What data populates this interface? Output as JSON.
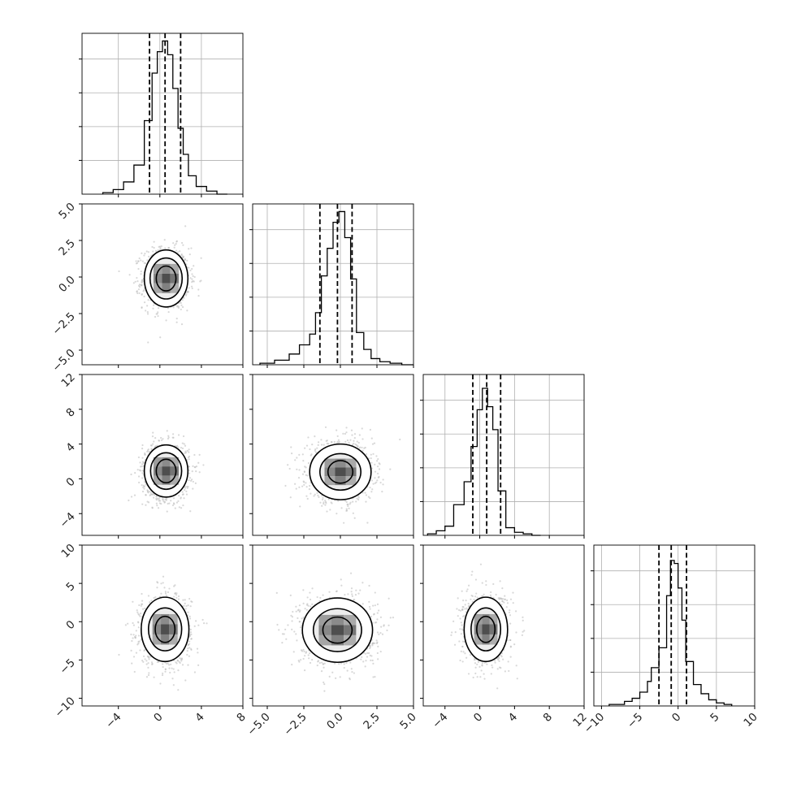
{
  "chart_data": {
    "type": "corner",
    "title": "",
    "parameters": [
      {
        "range": [
          -7.5,
          8.0
        ],
        "ticks": [
          -4,
          0,
          4,
          8
        ],
        "tick_labels": [
          "−4",
          "0",
          "4",
          "8"
        ],
        "quantiles": [
          -1.0,
          0.5,
          2.0
        ],
        "hist_ylim": [
          0,
          1.05
        ],
        "hist": {
          "edges": [
            -5.5,
            -4.5,
            -3.5,
            -2.5,
            -1.5,
            -0.75,
            -0.25,
            0.25,
            0.75,
            1.25,
            1.75,
            2.25,
            2.75,
            3.5,
            4.5,
            5.5,
            6.5
          ],
          "values": [
            0.01,
            0.03,
            0.08,
            0.19,
            0.48,
            0.79,
            0.93,
            1.0,
            0.91,
            0.69,
            0.43,
            0.26,
            0.12,
            0.05,
            0.02,
            0.0
          ]
        }
      },
      {
        "range": [
          -6.0,
          5.0
        ],
        "ticks": [
          -5.0,
          -2.5,
          0.0,
          2.5,
          5.0
        ],
        "tick_labels": [
          "−5.0",
          "−2.5",
          "0.0",
          "2.5",
          "5.0"
        ],
        "quantiles": [
          -1.4,
          -0.2,
          0.8
        ],
        "hist_ylim": [
          0,
          1.05
        ],
        "hist": {
          "edges": [
            -5.5,
            -4.5,
            -3.5,
            -2.8,
            -2.1,
            -1.7,
            -1.3,
            -0.9,
            -0.5,
            -0.1,
            0.3,
            0.7,
            1.1,
            1.6,
            2.1,
            2.7,
            3.4,
            4.2,
            5.0
          ],
          "values": [
            0.01,
            0.03,
            0.07,
            0.13,
            0.2,
            0.34,
            0.58,
            0.76,
            0.93,
            1.0,
            0.83,
            0.56,
            0.21,
            0.1,
            0.04,
            0.02,
            0.01,
            0.0
          ]
        }
      },
      {
        "range": [
          -6.5,
          12.0
        ],
        "ticks": [
          -4,
          0,
          4,
          8,
          12
        ],
        "tick_labels": [
          "−4",
          "0",
          "4",
          "8",
          "12"
        ],
        "y_tick_labels": [
          "−4",
          "0",
          "4",
          "8",
          "12"
        ],
        "quantiles": [
          -0.8,
          0.8,
          2.4
        ],
        "hist_ylim": [
          0,
          1.05
        ],
        "hist": {
          "edges": [
            -6.0,
            -5.0,
            -4.0,
            -3.0,
            -1.8,
            -1.0,
            -0.3,
            0.3,
            0.9,
            1.5,
            2.1,
            3.0,
            4.0,
            5.0,
            6.0,
            7.0
          ],
          "values": [
            0.01,
            0.03,
            0.06,
            0.2,
            0.35,
            0.58,
            0.82,
            0.96,
            0.84,
            0.69,
            0.29,
            0.05,
            0.02,
            0.01,
            0.0
          ]
        }
      },
      {
        "range": [
          -11.0,
          10.0
        ],
        "ticks": [
          -10,
          -5,
          0,
          5,
          10
        ],
        "tick_labels": [
          "−10",
          "−5",
          "0",
          "5",
          "10"
        ],
        "quantiles": [
          -2.5,
          -0.9,
          1.1
        ],
        "hist_ylim": [
          0,
          1.05
        ],
        "hist": {
          "edges": [
            -9.0,
            -7.0,
            -6.0,
            -5.0,
            -4.0,
            -3.5,
            -2.5,
            -1.5,
            -1.0,
            -0.5,
            0.0,
            0.5,
            1.0,
            2.0,
            3.0,
            4.0,
            5.0,
            6.0,
            7.0
          ],
          "values": [
            0.01,
            0.03,
            0.05,
            0.09,
            0.16,
            0.25,
            0.38,
            0.72,
            0.95,
            0.93,
            0.77,
            0.56,
            0.29,
            0.14,
            0.08,
            0.04,
            0.02,
            0.01
          ]
        }
      }
    ],
    "pairs": [
      {
        "x": 0,
        "y": 1,
        "center": [
          0.6,
          -0.1
        ],
        "contour_radii": [
          [
            2.1,
            1.95
          ],
          [
            1.55,
            1.4
          ],
          [
            0.95,
            0.85
          ]
        ]
      },
      {
        "x": 0,
        "y": 2,
        "center": [
          0.6,
          0.9
        ],
        "contour_radii": [
          [
            2.1,
            3.0
          ],
          [
            1.5,
            2.1
          ],
          [
            0.95,
            1.35
          ]
        ]
      },
      {
        "x": 1,
        "y": 2,
        "center": [
          0.0,
          0.8
        ],
        "contour_radii": [
          [
            2.1,
            3.2
          ],
          [
            1.4,
            2.1
          ],
          [
            0.85,
            1.3
          ]
        ]
      },
      {
        "x": 0,
        "y": 3,
        "center": [
          0.5,
          -1.0
        ],
        "contour_radii": [
          [
            2.3,
            4.2
          ],
          [
            1.6,
            2.8
          ],
          [
            0.95,
            1.7
          ]
        ]
      },
      {
        "x": 1,
        "y": 3,
        "center": [
          -0.2,
          -1.1
        ],
        "contour_radii": [
          [
            2.4,
            4.2
          ],
          [
            1.65,
            2.8
          ],
          [
            1.0,
            1.7
          ]
        ]
      },
      {
        "x": 2,
        "y": 3,
        "center": [
          0.7,
          -1.0
        ],
        "contour_radii": [
          [
            2.5,
            4.2
          ],
          [
            1.7,
            2.8
          ],
          [
            1.05,
            1.7
          ]
        ]
      }
    ]
  }
}
